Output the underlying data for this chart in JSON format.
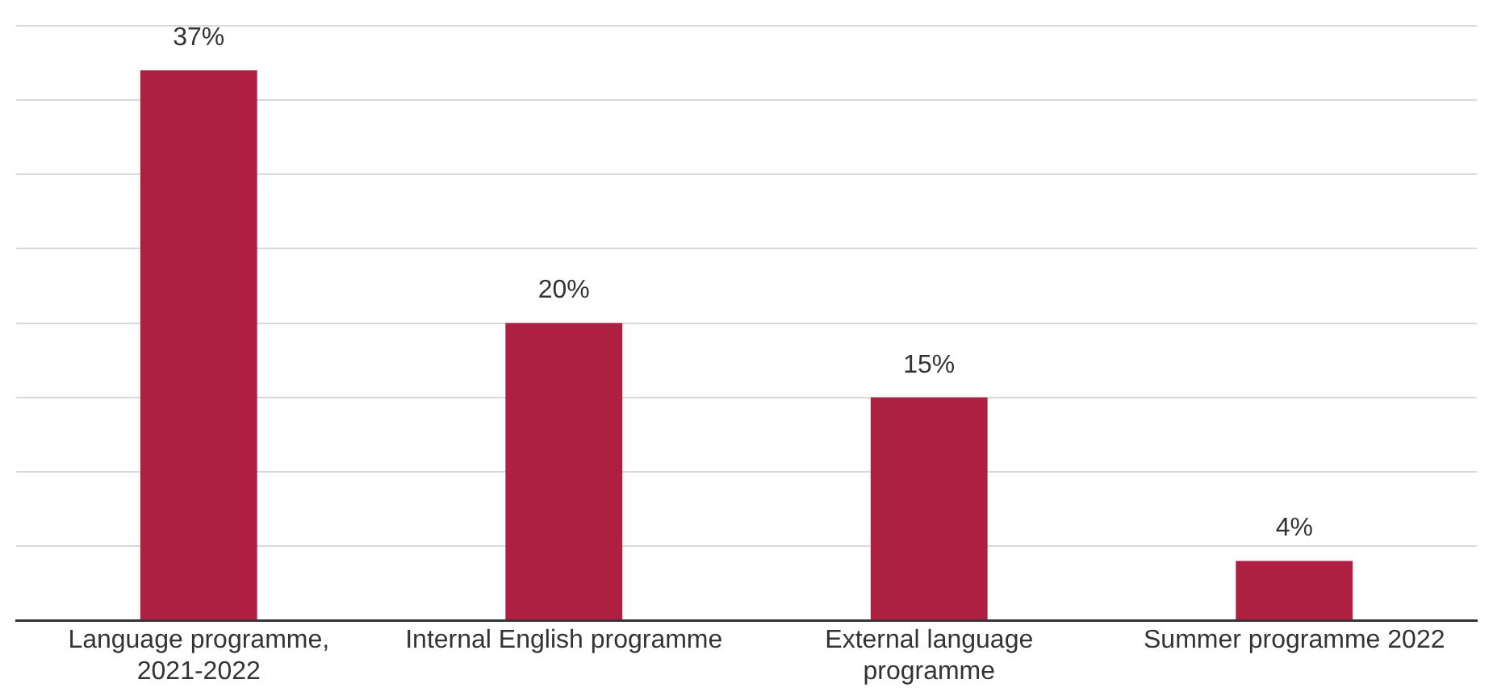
{
  "chart_data": {
    "type": "bar",
    "categories": [
      "Language programme, 2021-2022",
      "Internal English programme",
      "External language programme",
      "Summer programme 2022"
    ],
    "values": [
      37,
      20,
      15,
      4
    ],
    "value_labels": [
      "37%",
      "20%",
      "15%",
      "4%"
    ],
    "color": "#ae1f42",
    "ylim": [
      0,
      40
    ],
    "yticks": [
      {
        "value": 0,
        "label": null
      },
      {
        "value": 5,
        "label": null
      },
      {
        "value": 10,
        "label": null
      },
      {
        "value": 15,
        "label": null
      },
      {
        "value": 20,
        "label": null
      },
      {
        "value": 25,
        "label": null
      },
      {
        "value": 30,
        "label": null
      },
      {
        "value": 35,
        "label": null
      },
      {
        "value": 40,
        "label": null
      }
    ],
    "grid": "y",
    "tick_labels": "x",
    "legend": false
  }
}
